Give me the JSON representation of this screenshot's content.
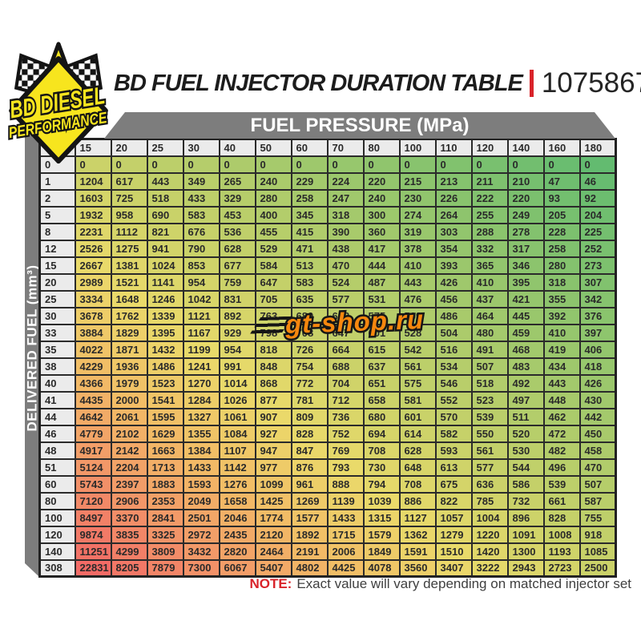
{
  "header": {
    "title": "BD FUEL INJECTOR DURATION TABLE",
    "part_number": "1075867",
    "divider_color": "#d9232a"
  },
  "logo": {
    "line1": "BD DIESEL",
    "line2": "PERFORMANCE"
  },
  "watermark": {
    "text": "gt-shop.ru"
  },
  "note": {
    "label": "NOTE:",
    "text": "Exact value will vary depending on matched injector set"
  },
  "colors": {
    "banner_gray": "#7d7d7d",
    "accent_red": "#d9232a",
    "header_cell_bg": "#ebebeb",
    "grid_line": "#2b2b2b"
  },
  "chart_data": {
    "type": "heatmap",
    "title": "BD FUEL INJECTOR DURATION TABLE",
    "xlabel": "FUEL PRESSURE (MPa)",
    "ylabel": "DELIVERED FUEL (mm³)",
    "legend_position": "none",
    "grid": true,
    "color_scale": {
      "low": "#63bb70",
      "mid": "#cbd269",
      "high": "#f26b66",
      "mapping": "diagonal gradient: green at low delivered fuel / high pressure, red at high delivered fuel / low pressure",
      "stops": [
        [
          0,
          "#63bb70"
        ],
        [
          0.5,
          "#cbd269"
        ],
        [
          0.63,
          "#eada6a"
        ],
        [
          0.76,
          "#f2bc66"
        ],
        [
          0.88,
          "#f29668"
        ],
        [
          1,
          "#f26b66"
        ]
      ]
    },
    "columns": [
      15,
      20,
      25,
      30,
      40,
      50,
      60,
      70,
      80,
      100,
      110,
      120,
      140,
      160,
      180
    ],
    "rows": [
      0,
      1,
      2,
      5,
      8,
      12,
      15,
      20,
      25,
      30,
      33,
      35,
      38,
      40,
      41,
      44,
      46,
      48,
      51,
      60,
      80,
      100,
      120,
      140,
      308
    ],
    "values": [
      [
        0,
        0,
        0,
        0,
        0,
        0,
        0,
        0,
        0,
        0,
        0,
        0,
        0,
        0,
        0
      ],
      [
        1204,
        617,
        443,
        349,
        265,
        240,
        229,
        224,
        220,
        215,
        213,
        211,
        210,
        47,
        46
      ],
      [
        1603,
        725,
        518,
        433,
        329,
        280,
        258,
        247,
        240,
        230,
        226,
        222,
        220,
        93,
        92
      ],
      [
        1932,
        958,
        690,
        583,
        453,
        400,
        345,
        318,
        300,
        274,
        264,
        255,
        249,
        205,
        204
      ],
      [
        2231,
        1112,
        821,
        676,
        536,
        455,
        415,
        390,
        360,
        319,
        303,
        288,
        278,
        228,
        225
      ],
      [
        2526,
        1275,
        941,
        790,
        628,
        529,
        471,
        438,
        417,
        378,
        354,
        332,
        317,
        258,
        252
      ],
      [
        2667,
        1381,
        1024,
        853,
        677,
        584,
        513,
        470,
        444,
        410,
        393,
        365,
        346,
        280,
        273
      ],
      [
        2989,
        1521,
        1141,
        954,
        759,
        647,
        583,
        524,
        487,
        443,
        426,
        410,
        395,
        318,
        307
      ],
      [
        3334,
        1648,
        1246,
        1042,
        831,
        705,
        635,
        577,
        531,
        476,
        456,
        437,
        421,
        355,
        342
      ],
      [
        3678,
        1762,
        1339,
        1121,
        892,
        763,
        680,
        623,
        575,
        509,
        486,
        464,
        445,
        392,
        376
      ],
      [
        3884,
        1829,
        1395,
        1167,
        929,
        798,
        708,
        647,
        601,
        528,
        504,
        480,
        459,
        410,
        397
      ],
      [
        4022,
        1871,
        1432,
        1199,
        954,
        818,
        726,
        664,
        615,
        542,
        516,
        491,
        468,
        419,
        406
      ],
      [
        4229,
        1936,
        1486,
        1241,
        991,
        848,
        754,
        688,
        637,
        561,
        534,
        507,
        483,
        434,
        418
      ],
      [
        4366,
        1979,
        1523,
        1270,
        1014,
        868,
        772,
        704,
        651,
        575,
        546,
        518,
        492,
        443,
        426
      ],
      [
        4435,
        2000,
        1541,
        1284,
        1026,
        877,
        781,
        712,
        658,
        581,
        552,
        523,
        497,
        448,
        430
      ],
      [
        4642,
        2061,
        1595,
        1327,
        1061,
        907,
        809,
        736,
        680,
        601,
        570,
        539,
        511,
        462,
        442
      ],
      [
        4779,
        2102,
        1629,
        1355,
        1084,
        927,
        828,
        752,
        694,
        614,
        582,
        550,
        520,
        472,
        450
      ],
      [
        4917,
        2142,
        1663,
        1384,
        1107,
        947,
        847,
        769,
        708,
        628,
        593,
        561,
        530,
        482,
        458
      ],
      [
        5124,
        2204,
        1713,
        1433,
        1142,
        977,
        876,
        793,
        730,
        648,
        613,
        577,
        544,
        496,
        470
      ],
      [
        5743,
        2397,
        1883,
        1593,
        1276,
        1099,
        961,
        888,
        794,
        708,
        675,
        636,
        586,
        539,
        507
      ],
      [
        7120,
        2906,
        2353,
        2049,
        1658,
        1425,
        1269,
        1139,
        1039,
        886,
        822,
        785,
        732,
        661,
        587
      ],
      [
        8497,
        3370,
        2841,
        2501,
        2046,
        1774,
        1577,
        1433,
        1315,
        1127,
        1057,
        1004,
        896,
        828,
        755
      ],
      [
        9874,
        3835,
        3325,
        2972,
        2435,
        2120,
        1892,
        1715,
        1579,
        1362,
        1279,
        1220,
        1091,
        1008,
        918
      ],
      [
        11251,
        4299,
        3809,
        3432,
        2820,
        2464,
        2191,
        2006,
        1849,
        1591,
        1510,
        1420,
        1300,
        1193,
        1085
      ],
      [
        22831,
        8205,
        7879,
        7300,
        6067,
        5407,
        4802,
        4425,
        4078,
        3560,
        3407,
        3222,
        2943,
        2723,
        2500
      ]
    ]
  }
}
